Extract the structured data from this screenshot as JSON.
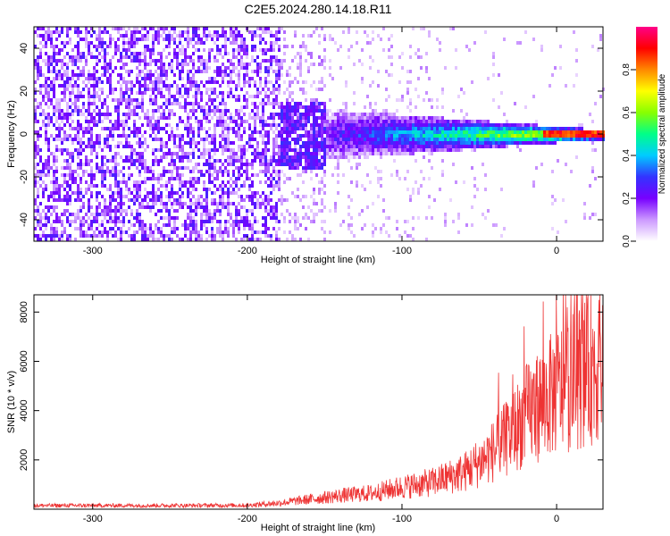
{
  "title": "C2E5.2024.280.14.18.R11",
  "chart_data": [
    {
      "type": "heatmap",
      "xlabel": "Height of straight line (km)",
      "ylabel": "Frequency (Hz)",
      "xlim": [
        -338,
        30
      ],
      "ylim": [
        -50,
        50
      ],
      "x_ticks": [
        -300,
        -200,
        -100,
        0
      ],
      "y_ticks": [
        -40,
        -20,
        0,
        20,
        40
      ],
      "colorbar": {
        "label": "Normalized spectral amplitude",
        "range": [
          0,
          1
        ],
        "ticks": [
          0.0,
          0.2,
          0.4,
          0.6,
          0.8
        ],
        "colors": [
          "#ffffff",
          "#cc99ff",
          "#7700ff",
          "#3333ff",
          "#00ccff",
          "#00ff88",
          "#88ff00",
          "#ffff00",
          "#ff8800",
          "#ff0000",
          "#ff0088"
        ]
      },
      "description_values": {
        "band_center_hz": 0,
        "band_halfwidth_hz_at_-150km": 12,
        "band_halfwidth_hz_at_0km": 2,
        "peak_amplitude_near_0km": 0.95
      }
    },
    {
      "type": "line",
      "xlabel": "Height of straight line (km)",
      "ylabel": "SNR (10 * v/v)",
      "xlim": [
        -338,
        30
      ],
      "ylim": [
        0,
        8700
      ],
      "x_ticks": [
        -300,
        -200,
        -100,
        0
      ],
      "y_ticks": [
        2000,
        4000,
        6000,
        8000
      ],
      "series": [
        {
          "color": "#ee3333",
          "x": [
            -338,
            -300,
            -250,
            -200,
            -180,
            -160,
            -140,
            -120,
            -100,
            -80,
            -60,
            -50,
            -40,
            -30,
            -20,
            -10,
            0,
            10,
            20,
            30
          ],
          "y": [
            150,
            150,
            150,
            160,
            250,
            400,
            550,
            650,
            900,
            1100,
            1500,
            1900,
            2400,
            3000,
            3800,
            4300,
            4800,
            5200,
            5600,
            6000
          ]
        }
      ]
    }
  ]
}
